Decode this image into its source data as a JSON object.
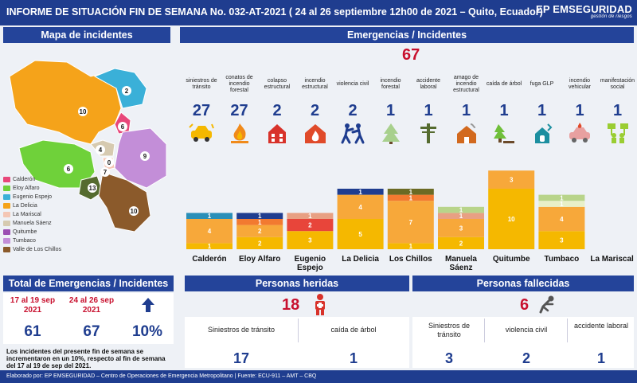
{
  "header": {
    "title": "INFORME DE SITUACIÓN FIN DE SEMANA No. 032-AT-2021 ( 24 al 26 septiembre 12h00 de 2021 – Quito, Ecuador)",
    "brand": "EP EMSEGURIDAD",
    "brand_tagline": "gestión de riesgos"
  },
  "map_panel": {
    "title": "Mapa de incidentes",
    "region_values": [
      "10",
      "2",
      "6",
      "4",
      "0",
      "7",
      "9",
      "6",
      "13",
      "10"
    ],
    "legend": [
      {
        "label": "Calderón",
        "color": "#e8477a"
      },
      {
        "label": "Eloy Alfaro",
        "color": "#6fd13a"
      },
      {
        "label": "Eugenio Espejo",
        "color": "#3ab0d8"
      },
      {
        "label": "La Delicia",
        "color": "#f5a31a"
      },
      {
        "label": "La Mariscal",
        "color": "#f4c6b4"
      },
      {
        "label": "Manuela Sáenz",
        "color": "#d6cab0"
      },
      {
        "label": "Quitumbe",
        "color": "#9b4fb2"
      },
      {
        "label": "Tumbaco",
        "color": "#c38ed8"
      },
      {
        "label": "Valle de Los Chillos",
        "color": "#8b5a2b"
      }
    ]
  },
  "emergencias": {
    "title": "Emergencias / Incidentes",
    "total": "67",
    "categories": [
      {
        "label": "siniestros de tránsito",
        "value": "27",
        "icon": "car-crash-icon",
        "color": "#f5b800"
      },
      {
        "label": "conatos de incendio forestal",
        "value": "27",
        "icon": "forest-fire-icon",
        "color": "#f5b800"
      },
      {
        "label": "colapso estructural",
        "value": "2",
        "icon": "building-collapse-icon",
        "color": "#d8322a"
      },
      {
        "label": "incendio estructural",
        "value": "2",
        "icon": "house-fire-icon",
        "color": "#e04a2a"
      },
      {
        "label": "violencia civil",
        "value": "2",
        "icon": "fight-icon",
        "color": "#1f3d8f"
      },
      {
        "label": "incendio forestal",
        "value": "1",
        "icon": "tree-fire-icon",
        "color": "#a8d08d"
      },
      {
        "label": "accidente laboral",
        "value": "1",
        "icon": "utility-pole-icon",
        "color": "#556b2f"
      },
      {
        "label": "amago de incendio estructural",
        "value": "1",
        "icon": "house-smoke-icon",
        "color": "#d2691e"
      },
      {
        "label": "caída de árbol",
        "value": "1",
        "icon": "fallen-tree-icon",
        "color": "#6fbf3a"
      },
      {
        "label": "fuga GLP",
        "value": "1",
        "icon": "gas-leak-icon",
        "color": "#1c8fa0"
      },
      {
        "label": "incendio vehicular",
        "value": "1",
        "icon": "car-fire-icon",
        "color": "#e8a0a0"
      },
      {
        "label": "manifestación social",
        "value": "1",
        "icon": "protest-icon",
        "color": "#9acd32"
      }
    ]
  },
  "chart_data": {
    "type": "bar",
    "stacked": true,
    "categories": [
      "Calderón",
      "Eloy Alfaro",
      "Eugenio Espejo",
      "La Delicia",
      "Los Chillos",
      "Manuela Sáenz",
      "Quitumbe",
      "Tumbaco",
      "La Mariscal"
    ],
    "stacks": [
      [
        {
          "value": 1,
          "color": "#f5b800"
        },
        {
          "value": 4,
          "color": "#f7a83a"
        },
        {
          "value": 1,
          "color": "#2a8fb8"
        }
      ],
      [
        {
          "value": 2,
          "color": "#f5b800"
        },
        {
          "value": 2,
          "color": "#f7a83a"
        },
        {
          "value": 1,
          "color": "#f27a30"
        },
        {
          "value": 1,
          "color": "#1f3d8f"
        }
      ],
      [
        {
          "value": 3,
          "color": "#f5b800"
        },
        {
          "value": 2,
          "color": "#e8453a"
        },
        {
          "value": 1,
          "color": "#e8a083"
        }
      ],
      [
        {
          "value": 5,
          "color": "#f5b800"
        },
        {
          "value": 4,
          "color": "#f7a83a"
        },
        {
          "value": 1,
          "color": "#1f3d8f"
        }
      ],
      [
        {
          "value": 1,
          "color": "#f5b800"
        },
        {
          "value": 7,
          "color": "#f7a83a"
        },
        {
          "value": 1,
          "color": "#f27a30"
        },
        {
          "value": 1,
          "color": "#6b6a24"
        }
      ],
      [
        {
          "value": 2,
          "color": "#f5b800"
        },
        {
          "value": 3,
          "color": "#f7a83a"
        },
        {
          "value": 1,
          "color": "#e8a083"
        },
        {
          "value": 1,
          "color": "#b8d48a"
        }
      ],
      [
        {
          "value": 10,
          "color": "#f5b800"
        },
        {
          "value": 3,
          "color": "#f7a83a"
        }
      ],
      [
        {
          "value": 3,
          "color": "#f5b800"
        },
        {
          "value": 4,
          "color": "#f7a83a"
        },
        {
          "value": 1,
          "color": "#e8f0c8"
        },
        {
          "value": 1,
          "color": "#b8d48a"
        }
      ],
      []
    ],
    "label_lines": [
      [
        "Calderón"
      ],
      [
        "Eloy Alfaro"
      ],
      [
        "Eugenio",
        "Espejo"
      ],
      [
        "La Delicia"
      ],
      [
        "Los Chillos"
      ],
      [
        "Manuela",
        "Sáenz"
      ],
      [
        "Quitumbe"
      ],
      [
        "Tumbaco"
      ],
      [
        "La Mariscal"
      ]
    ]
  },
  "total_panel": {
    "title": "Total de Emergencias / Incidentes",
    "period_prev_line1": "17 al 19 sep",
    "period_prev_line2": "2021",
    "period_curr_line1": "24 al 26 sep",
    "period_curr_line2": "2021",
    "trend_icon": "arrow-up-icon",
    "value_prev": "61",
    "value_curr": "67",
    "change": "10%",
    "note": "Los incidentes del presente fin de semana se incrementaron en un 10%, respecto al fin de semana del 17 al 19 de sep del 2021."
  },
  "heridas": {
    "title": "Personas heridas",
    "total": "18",
    "icon": "injured-person-icon",
    "items": [
      {
        "label": "Siniestros de tránsito",
        "value": "17"
      },
      {
        "label": "caída de árbol",
        "value": "1"
      }
    ]
  },
  "fallecidas": {
    "title": "Personas fallecidas",
    "total": "6",
    "icon": "fallen-person-icon",
    "items": [
      {
        "label": "Siniestros de tránsito",
        "value": "3"
      },
      {
        "label": "violencia civil",
        "value": "2"
      },
      {
        "label": "accidente laboral",
        "value": "1"
      }
    ]
  },
  "footer": {
    "text": "Elaborado por: EP EMSEGURIDAD – Centro de Operaciones de Emergencia Metropolitano | Fuente: ECU-911 – AMT – CBQ"
  }
}
